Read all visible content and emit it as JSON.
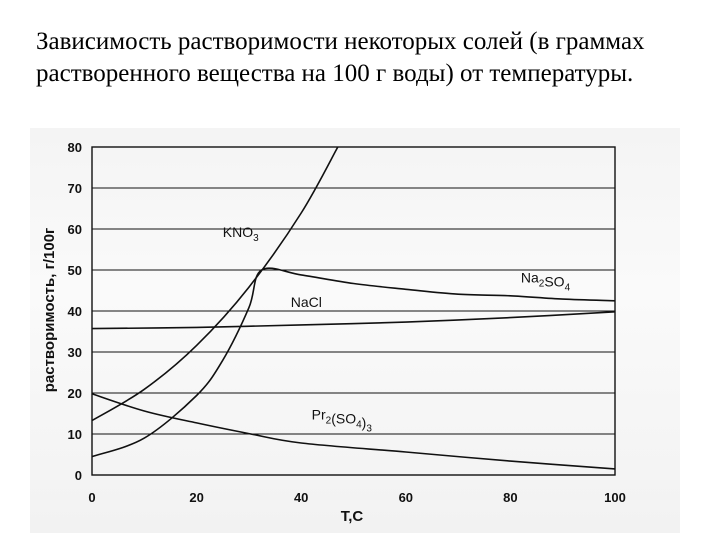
{
  "slide": {
    "title": "Зависимость растворимости некоторых солей (в граммах растворенного вещества на 100 г воды) от температуры."
  },
  "chart_data": {
    "type": "line",
    "xlabel": "T,C",
    "ylabel": "растворимость, г/100г",
    "xlim": [
      0,
      100
    ],
    "ylim": [
      0,
      80
    ],
    "x_ticks": [
      0,
      20,
      40,
      60,
      80,
      100
    ],
    "y_ticks": [
      0,
      10,
      20,
      30,
      40,
      50,
      60,
      70,
      80
    ],
    "grid": "horizontal",
    "series": [
      {
        "name": "KNO3",
        "label_parts": [
          [
            "KNO",
            ""
          ],
          [
            "3",
            "sub"
          ]
        ],
        "label_at": [
          25,
          58
        ],
        "points": [
          [
            0,
            13.3
          ],
          [
            10,
            20.9
          ],
          [
            20,
            31.6
          ],
          [
            30,
            45.8
          ],
          [
            40,
            63.9
          ],
          [
            47,
            80
          ]
        ]
      },
      {
        "name": "Na2SO4",
        "label_parts": [
          [
            "Na",
            ""
          ],
          [
            "2",
            "sub"
          ],
          [
            "SO",
            ""
          ],
          [
            "4",
            "sub"
          ]
        ],
        "label_at": [
          82,
          47
        ],
        "points": [
          [
            0,
            4.5
          ],
          [
            10,
            9.0
          ],
          [
            20,
            19.4
          ],
          [
            25,
            28
          ],
          [
            30,
            40.8
          ],
          [
            32.4,
            50
          ],
          [
            40,
            48.8
          ],
          [
            50,
            46.7
          ],
          [
            60,
            45.3
          ],
          [
            70,
            44.1
          ],
          [
            80,
            43.7
          ],
          [
            90,
            42.9
          ],
          [
            100,
            42.5
          ]
        ]
      },
      {
        "name": "NaCl",
        "label_parts": [
          [
            "NaCl",
            ""
          ]
        ],
        "label_at": [
          38,
          41
        ],
        "points": [
          [
            0,
            35.7
          ],
          [
            20,
            36.0
          ],
          [
            40,
            36.6
          ],
          [
            60,
            37.3
          ],
          [
            80,
            38.4
          ],
          [
            100,
            39.8
          ]
        ]
      },
      {
        "name": "Pr2(SO4)3",
        "label_parts": [
          [
            "Pr",
            ""
          ],
          [
            "2",
            "sub"
          ],
          [
            "(SO",
            ""
          ],
          [
            "4",
            "sub"
          ],
          [
            ")",
            ""
          ],
          [
            "3",
            "sub"
          ]
        ],
        "label_at": [
          42,
          13.5
        ],
        "points": [
          [
            0,
            19.8
          ],
          [
            10,
            15.6
          ],
          [
            20,
            12.7
          ],
          [
            30,
            10.1
          ],
          [
            40,
            7.8
          ],
          [
            60,
            5.6
          ],
          [
            80,
            3.4
          ],
          [
            100,
            1.5
          ]
        ]
      }
    ]
  }
}
